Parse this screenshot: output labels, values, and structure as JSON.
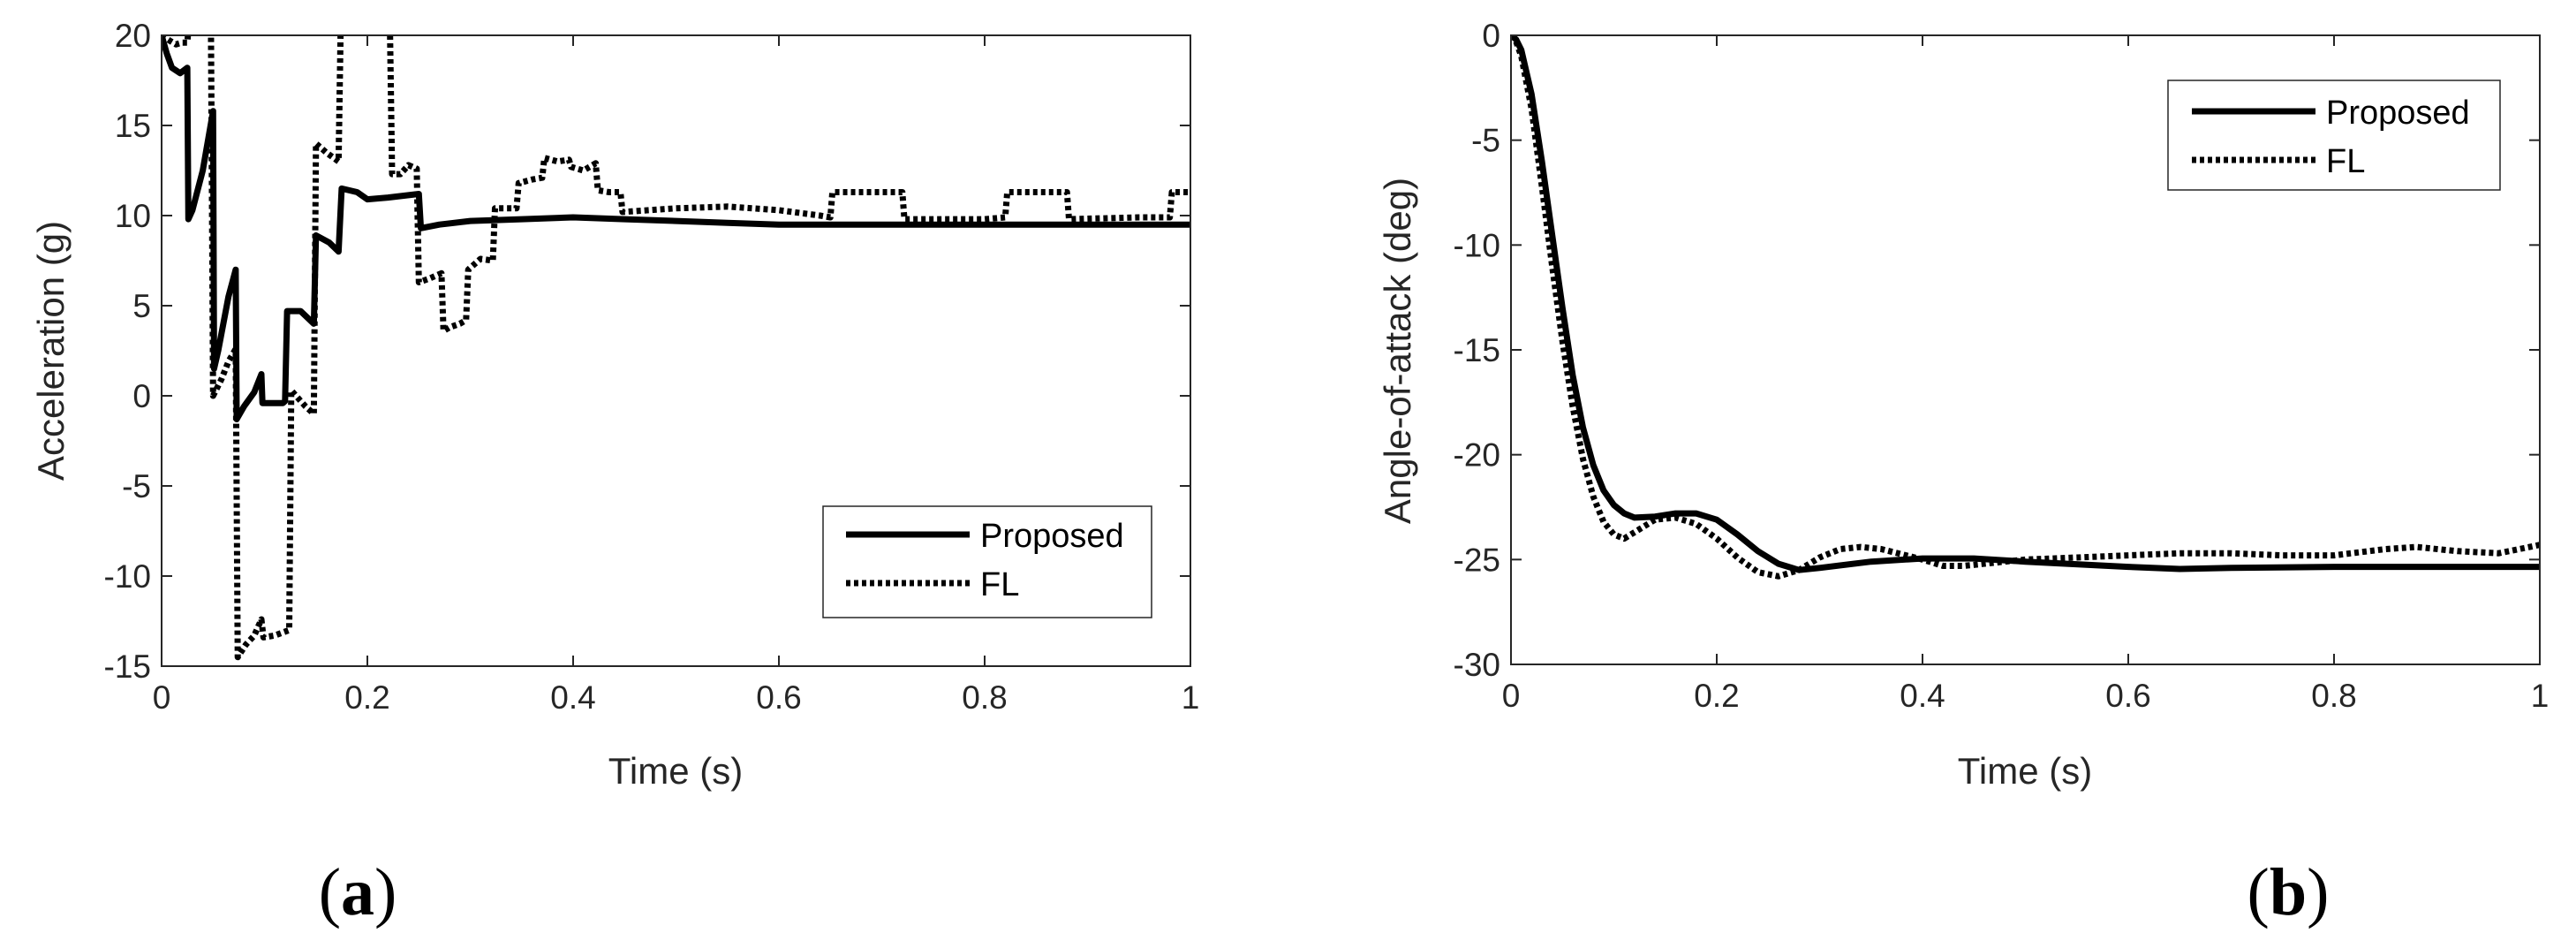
{
  "figure": {
    "panel_labels": [
      "a",
      "b"
    ]
  },
  "chart_data": [
    {
      "type": "line",
      "panel": "a",
      "xlabel": "Time (s)",
      "ylabel": "Acceleration (g)",
      "xlim": [
        0,
        1
      ],
      "ylim": [
        -15,
        20
      ],
      "xticks": [
        0,
        0.2,
        0.4,
        0.6,
        0.8,
        1
      ],
      "xtick_labels": [
        "0",
        "0.2",
        "0.4",
        "0.6",
        "0.8",
        "1"
      ],
      "yticks": [
        -15,
        -10,
        -5,
        0,
        5,
        10,
        15,
        20
      ],
      "ytick_labels": [
        "-15",
        "-10",
        "-5",
        "0",
        "5",
        "10",
        "15",
        "20"
      ],
      "legend_position": "bottom-right",
      "series": [
        {
          "name": "Proposed",
          "style": "solid",
          "color": "#000000",
          "points": [
            [
              0,
              20
            ],
            [
              0.005,
              19
            ],
            [
              0.01,
              18.2
            ],
            [
              0.018,
              17.9
            ],
            [
              0.025,
              18.2
            ],
            [
              0.026,
              9.8
            ],
            [
              0.03,
              10.3
            ],
            [
              0.04,
              12.5
            ],
            [
              0.05,
              15.8
            ],
            [
              0.051,
              1.5
            ],
            [
              0.055,
              2.5
            ],
            [
              0.065,
              5.5
            ],
            [
              0.072,
              7.0
            ],
            [
              0.073,
              -1.3
            ],
            [
              0.08,
              -0.6
            ],
            [
              0.09,
              0.2
            ],
            [
              0.097,
              1.2
            ],
            [
              0.098,
              -0.4
            ],
            [
              0.11,
              -0.4
            ],
            [
              0.118,
              -0.4
            ],
            [
              0.12,
              -0.3
            ],
            [
              0.122,
              4.7
            ],
            [
              0.135,
              4.7
            ],
            [
              0.148,
              4.0
            ],
            [
              0.15,
              8.9
            ],
            [
              0.163,
              8.5
            ],
            [
              0.172,
              8.0
            ],
            [
              0.175,
              11.5
            ],
            [
              0.19,
              11.3
            ],
            [
              0.2,
              10.9
            ],
            [
              0.22,
              11.0
            ],
            [
              0.25,
              11.2
            ],
            [
              0.252,
              9.3
            ],
            [
              0.27,
              9.5
            ],
            [
              0.3,
              9.7
            ],
            [
              0.35,
              9.8
            ],
            [
              0.4,
              9.9
            ],
            [
              0.45,
              9.8
            ],
            [
              0.5,
              9.7
            ],
            [
              0.55,
              9.6
            ],
            [
              0.6,
              9.5
            ],
            [
              0.7,
              9.5
            ],
            [
              0.8,
              9.5
            ],
            [
              0.9,
              9.5
            ],
            [
              1.0,
              9.5
            ]
          ]
        },
        {
          "name": "FL",
          "style": "dotted",
          "color": "#000000",
          "points": [
            [
              0,
              20
            ],
            [
              0.008,
              19.7
            ],
            [
              0.014,
              19.5
            ],
            [
              0.02,
              19.6
            ],
            [
              0.025,
              19.6
            ],
            [
              0.026,
              20.3
            ],
            [
              0.047,
              20.3
            ],
            [
              0.048,
              20.3
            ],
            [
              0.05,
              0.0
            ],
            [
              0.058,
              0.9
            ],
            [
              0.065,
              1.9
            ],
            [
              0.072,
              2.6
            ],
            [
              0.074,
              -14.5
            ],
            [
              0.082,
              -13.8
            ],
            [
              0.09,
              -13.3
            ],
            [
              0.097,
              -12.4
            ],
            [
              0.099,
              -13.4
            ],
            [
              0.11,
              -13.3
            ],
            [
              0.124,
              -13.0
            ],
            [
              0.126,
              0.3
            ],
            [
              0.14,
              -0.6
            ],
            [
              0.148,
              -1.0
            ],
            [
              0.15,
              14.0
            ],
            [
              0.16,
              13.5
            ],
            [
              0.172,
              13.0
            ],
            [
              0.174,
              20.3
            ],
            [
              0.222,
              20.3
            ],
            [
              0.224,
              12.3
            ],
            [
              0.232,
              12.3
            ],
            [
              0.24,
              12.8
            ],
            [
              0.248,
              12.6
            ],
            [
              0.25,
              6.3
            ],
            [
              0.26,
              6.5
            ],
            [
              0.272,
              6.8
            ],
            [
              0.274,
              3.6
            ],
            [
              0.28,
              3.8
            ],
            [
              0.29,
              4.0
            ],
            [
              0.296,
              4.2
            ],
            [
              0.298,
              7.0
            ],
            [
              0.31,
              7.6
            ],
            [
              0.322,
              7.5
            ],
            [
              0.324,
              10.4
            ],
            [
              0.335,
              10.4
            ],
            [
              0.345,
              10.4
            ],
            [
              0.347,
              11.8
            ],
            [
              0.36,
              12.0
            ],
            [
              0.37,
              12.1
            ],
            [
              0.372,
              13.2
            ],
            [
              0.385,
              13.0
            ],
            [
              0.396,
              13.1
            ],
            [
              0.398,
              12.7
            ],
            [
              0.41,
              12.5
            ],
            [
              0.422,
              12.9
            ],
            [
              0.424,
              11.4
            ],
            [
              0.435,
              11.3
            ],
            [
              0.446,
              11.3
            ],
            [
              0.448,
              10.2
            ],
            [
              0.5,
              10.4
            ],
            [
              0.55,
              10.5
            ],
            [
              0.6,
              10.3
            ],
            [
              0.64,
              10.0
            ],
            [
              0.65,
              9.9
            ],
            [
              0.652,
              11.3
            ],
            [
              0.72,
              11.3
            ],
            [
              0.722,
              9.8
            ],
            [
              0.75,
              9.8
            ],
            [
              0.8,
              9.8
            ],
            [
              0.82,
              9.9
            ],
            [
              0.822,
              11.3
            ],
            [
              0.88,
              11.3
            ],
            [
              0.882,
              9.8
            ],
            [
              0.95,
              9.9
            ],
            [
              0.98,
              9.9
            ],
            [
              0.982,
              11.3
            ],
            [
              1.0,
              11.3
            ]
          ]
        }
      ]
    },
    {
      "type": "line",
      "panel": "b",
      "xlabel": "Time (s)",
      "ylabel": "Angle-of-attack (deg)",
      "xlim": [
        0,
        1
      ],
      "ylim": [
        -30,
        0
      ],
      "xticks": [
        0,
        0.2,
        0.4,
        0.6,
        0.8,
        1
      ],
      "xtick_labels": [
        "0",
        "0.2",
        "0.4",
        "0.6",
        "0.8",
        "1"
      ],
      "yticks": [
        -30,
        -25,
        -20,
        -15,
        -10,
        -5,
        0
      ],
      "ytick_labels": [
        "-30",
        "-25",
        "-20",
        "-15",
        "-10",
        "-5",
        "0"
      ],
      "legend_position": "top-right",
      "series": [
        {
          "name": "Proposed",
          "style": "solid",
          "color": "#000000",
          "points": [
            [
              0,
              0
            ],
            [
              0.005,
              -0.2
            ],
            [
              0.01,
              -0.7
            ],
            [
              0.02,
              -2.8
            ],
            [
              0.03,
              -6.0
            ],
            [
              0.04,
              -9.5
            ],
            [
              0.05,
              -13.0
            ],
            [
              0.06,
              -16.2
            ],
            [
              0.07,
              -18.7
            ],
            [
              0.08,
              -20.5
            ],
            [
              0.09,
              -21.7
            ],
            [
              0.1,
              -22.4
            ],
            [
              0.11,
              -22.8
            ],
            [
              0.12,
              -23.0
            ],
            [
              0.14,
              -22.95
            ],
            [
              0.16,
              -22.8
            ],
            [
              0.18,
              -22.8
            ],
            [
              0.2,
              -23.1
            ],
            [
              0.22,
              -23.8
            ],
            [
              0.24,
              -24.6
            ],
            [
              0.26,
              -25.2
            ],
            [
              0.28,
              -25.5
            ],
            [
              0.3,
              -25.4
            ],
            [
              0.35,
              -25.1
            ],
            [
              0.4,
              -24.95
            ],
            [
              0.45,
              -24.95
            ],
            [
              0.5,
              -25.1
            ],
            [
              0.6,
              -25.35
            ],
            [
              0.65,
              -25.45
            ],
            [
              0.7,
              -25.4
            ],
            [
              0.8,
              -25.35
            ],
            [
              0.9,
              -25.35
            ],
            [
              1.0,
              -25.35
            ]
          ]
        },
        {
          "name": "FL",
          "style": "dotted",
          "color": "#000000",
          "points": [
            [
              0,
              0
            ],
            [
              0.005,
              -0.3
            ],
            [
              0.01,
              -1.0
            ],
            [
              0.02,
              -3.5
            ],
            [
              0.03,
              -7.2
            ],
            [
              0.04,
              -11.0
            ],
            [
              0.05,
              -14.6
            ],
            [
              0.06,
              -17.7
            ],
            [
              0.07,
              -20.2
            ],
            [
              0.08,
              -22.0
            ],
            [
              0.09,
              -23.2
            ],
            [
              0.1,
              -23.8
            ],
            [
              0.11,
              -24.0
            ],
            [
              0.12,
              -23.7
            ],
            [
              0.14,
              -23.1
            ],
            [
              0.16,
              -23.0
            ],
            [
              0.18,
              -23.3
            ],
            [
              0.2,
              -24.0
            ],
            [
              0.22,
              -24.9
            ],
            [
              0.24,
              -25.6
            ],
            [
              0.26,
              -25.8
            ],
            [
              0.28,
              -25.5
            ],
            [
              0.3,
              -24.9
            ],
            [
              0.32,
              -24.5
            ],
            [
              0.34,
              -24.4
            ],
            [
              0.36,
              -24.5
            ],
            [
              0.4,
              -25.0
            ],
            [
              0.42,
              -25.3
            ],
            [
              0.44,
              -25.3
            ],
            [
              0.5,
              -25.0
            ],
            [
              0.55,
              -24.9
            ],
            [
              0.6,
              -24.8
            ],
            [
              0.65,
              -24.7
            ],
            [
              0.7,
              -24.7
            ],
            [
              0.75,
              -24.8
            ],
            [
              0.8,
              -24.8
            ],
            [
              0.85,
              -24.5
            ],
            [
              0.88,
              -24.4
            ],
            [
              0.92,
              -24.6
            ],
            [
              0.96,
              -24.7
            ],
            [
              0.98,
              -24.5
            ],
            [
              1.0,
              -24.3
            ]
          ]
        }
      ]
    }
  ]
}
